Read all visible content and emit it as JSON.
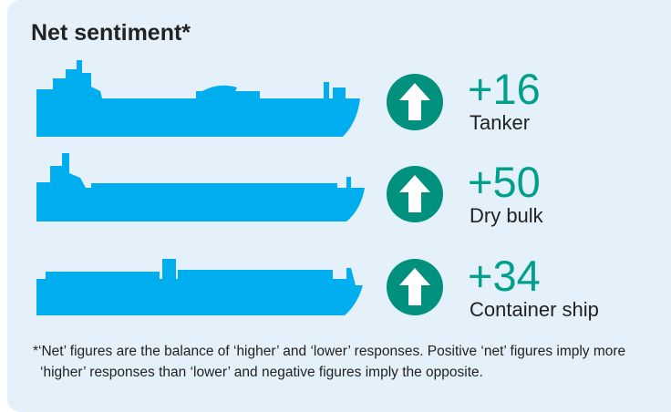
{
  "title": "Net sentiment*",
  "items": [
    {
      "value": "+16",
      "label": "Tanker"
    },
    {
      "value": "+50",
      "label": "Dry bulk"
    },
    {
      "value": "+34",
      "label": "Container ship"
    }
  ],
  "footnote": "*‘Net’ figures are the balance of ‘higher’ and ‘lower’ responses. Positive ‘net’ figures imply more ‘higher’ responses than ‘lower’ and negative figures imply the opposite."
}
